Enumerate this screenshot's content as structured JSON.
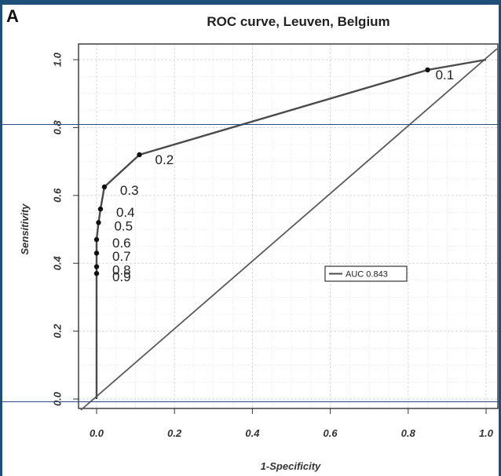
{
  "panel_letter": "A",
  "chart_data": {
    "type": "line",
    "title": "ROC curve, Leuven, Belgium",
    "xlabel": "1-Specificity",
    "ylabel": "Sensitivity",
    "xlim": [
      0.0,
      1.0
    ],
    "ylim": [
      0.0,
      1.0
    ],
    "xticks": [
      "0.0",
      "0.2",
      "0.4",
      "0.6",
      "0.8",
      "1.0"
    ],
    "yticks": [
      "0.0",
      "0.2",
      "0.4",
      "0.6",
      "0.8",
      "1.0"
    ],
    "grid": true,
    "legend": {
      "position": "right-center",
      "entries": [
        "AUC 0.843"
      ]
    },
    "roc_points": [
      {
        "x": 0.0,
        "y": 0.0,
        "label": ""
      },
      {
        "x": 0.0,
        "y": 0.37,
        "label": "0.9"
      },
      {
        "x": 0.0,
        "y": 0.39,
        "label": "0.8"
      },
      {
        "x": 0.0,
        "y": 0.43,
        "label": "0.7"
      },
      {
        "x": 0.0,
        "y": 0.47,
        "label": "0.6"
      },
      {
        "x": 0.005,
        "y": 0.52,
        "label": "0.5"
      },
      {
        "x": 0.01,
        "y": 0.56,
        "label": "0.4"
      },
      {
        "x": 0.02,
        "y": 0.625,
        "label": "0.3"
      },
      {
        "x": 0.11,
        "y": 0.72,
        "label": "0.2"
      },
      {
        "x": 0.85,
        "y": 0.97,
        "label": "0.1"
      },
      {
        "x": 1.0,
        "y": 1.0,
        "label": ""
      }
    ],
    "reference_line": [
      [
        0.0,
        0.0
      ],
      [
        1.0,
        1.0
      ]
    ],
    "colors": {
      "curve": "#4a4a4a",
      "diagonal": "#5a5a5a",
      "grid": "#d9d9d9",
      "frame": "#1f4e79"
    }
  }
}
